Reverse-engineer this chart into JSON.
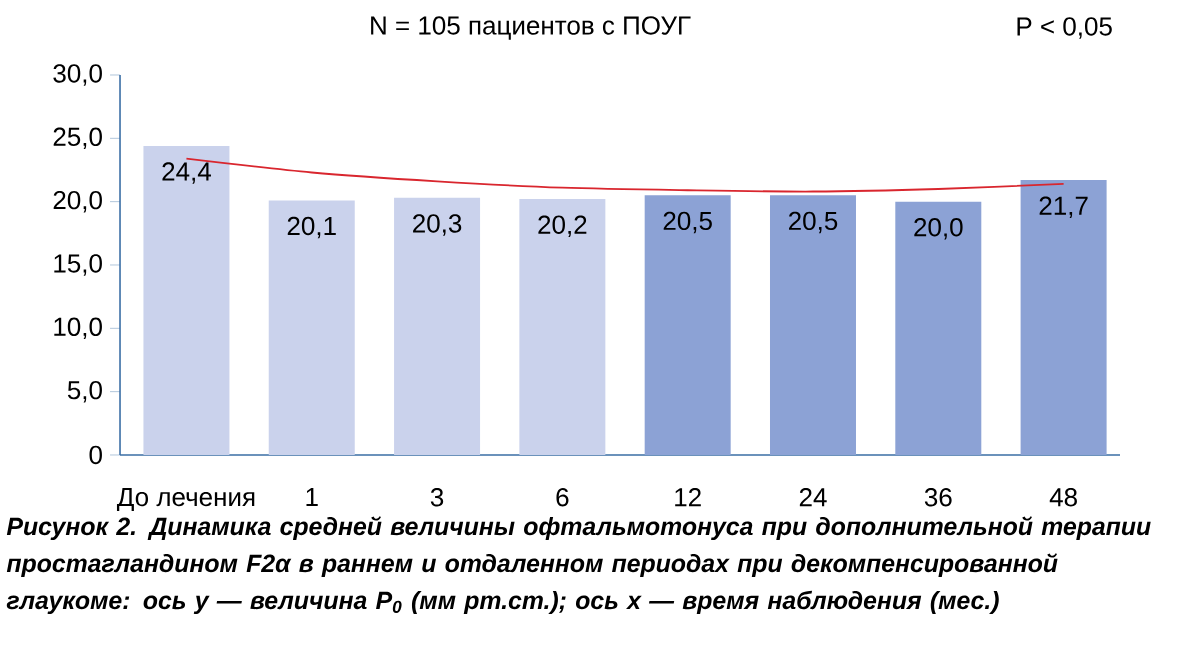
{
  "chart_data": {
    "type": "bar",
    "title": "N = 105 пациентов с ПОУГ",
    "annotations": [
      "P < 0,05",
      "Рисунок 2. Динамика средней величины офтальмотонуса при дополнительной терапии простагландином F2α в раннем и отдаленном периодах при декомпенсированной глаукоме: ось y — величина P$_{0}$ (мм рт.ст.); ось x — время наблюдения (мес.)"
    ],
    "categories": [
      "До лечения",
      "1",
      "3",
      "6",
      "12",
      "24",
      "36",
      "48"
    ],
    "series": [
      {
        "values": [
          24.4,
          20.1,
          20.3,
          20.2,
          20.5,
          20.5,
          20.0,
          21.7
        ],
        "value_labels": [
          "24,4",
          "20,1",
          "20,3",
          "20,2",
          "20,5",
          "20,5",
          "20,0",
          "21,7"
        ],
        "colors": [
          "#cad2ec",
          "#cad2ec",
          "#cad2ec",
          "#cad2ec",
          "#8ca2d5",
          "#8ca2d5",
          "#8ca2d5",
          "#8ca2d5"
        ]
      },
      {
        "type": "line",
        "color": "#d9262e",
        "values": [
          23.4,
          22.3,
          21.6,
          21.1,
          20.9,
          20.8,
          21.0,
          21.4
        ]
      }
    ],
    "ylim": [
      0,
      30
    ],
    "yticks": [
      0,
      {
        "value": 5,
        "label": "5,0"
      },
      {
        "value": 10,
        "label": "10,0"
      },
      {
        "value": 15,
        "label": "15,0"
      },
      {
        "value": 20,
        "label": "20,0"
      },
      {
        "value": 25,
        "label": "25,0"
      },
      {
        "value": 30,
        "label": "30,0"
      }
    ],
    "grid": false
  }
}
